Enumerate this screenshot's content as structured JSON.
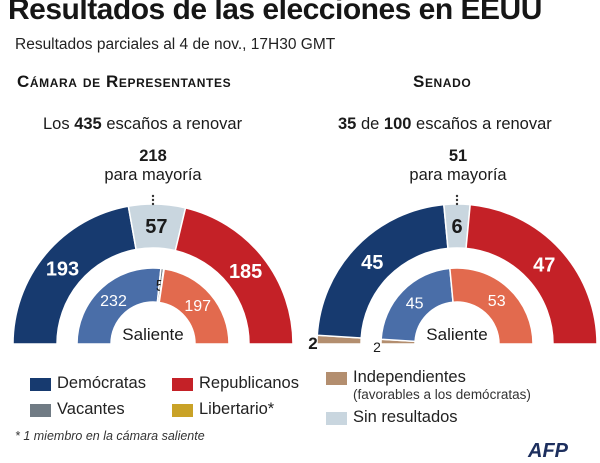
{
  "title": "Resultados de las elecciones en EEUU",
  "subtitle": "Resultados parciales al 4 de nov., 17H30 GMT",
  "colors": {
    "democrats": "#173a6f",
    "republicans": "#c42127",
    "vacancies": "#707b84",
    "libertarian": "#c9a227",
    "independents": "#b38e6f",
    "no_results": "#c9d6df",
    "outgoing_dem": "#4a6ea8",
    "outgoing_rep": "#e26a4e"
  },
  "house": {
    "title": "Cámara de Representantes",
    "seats_prefix": "Los",
    "seats_total": "435",
    "seats_suffix": "escaños a renovar",
    "majority_number": "218",
    "majority_label": "para mayoría",
    "outgoing_label": "Saliente"
  },
  "senate": {
    "title": "Senado",
    "seats_up": "35",
    "seats_de": "de",
    "seats_total": "100",
    "seats_suffix": "escaños a renovar",
    "majority_number": "51",
    "majority_label": "para mayoría",
    "outgoing_label": "Saliente"
  },
  "chart_data": [
    {
      "type": "semicircle",
      "title": "Cámara de Representantes — resultados",
      "total": 435,
      "segments": [
        {
          "name": "Demócratas",
          "value": 193,
          "color_key": "democrats"
        },
        {
          "name": "Sin resultados",
          "value": 57,
          "color_key": "no_results"
        },
        {
          "name": "Republicanos",
          "value": 185,
          "color_key": "republicans"
        }
      ]
    },
    {
      "type": "semicircle",
      "title": "Cámara de Representantes — saliente",
      "total": 435,
      "segments": [
        {
          "name": "Demócratas",
          "value": 232,
          "color_key": "outgoing_dem"
        },
        {
          "name": "Vacantes",
          "value": 5,
          "color_key": "vacancies"
        },
        {
          "name": "Libertario",
          "value": 1,
          "color_key": "libertarian",
          "hide_label": true
        },
        {
          "name": "Republicanos",
          "value": 197,
          "color_key": "outgoing_rep"
        }
      ]
    },
    {
      "type": "semicircle",
      "title": "Senado — resultados",
      "total": 100,
      "segments": [
        {
          "name": "Independientes",
          "value": 2,
          "color_key": "independents"
        },
        {
          "name": "Demócratas",
          "value": 45,
          "color_key": "democrats"
        },
        {
          "name": "Sin resultados",
          "value": 6,
          "color_key": "no_results"
        },
        {
          "name": "Republicanos",
          "value": 47,
          "color_key": "republicans"
        }
      ]
    },
    {
      "type": "semicircle",
      "title": "Senado — saliente",
      "total": 100,
      "segments": [
        {
          "name": "Independientes",
          "value": 2,
          "color_key": "independents"
        },
        {
          "name": "Demócratas",
          "value": 45,
          "color_key": "outgoing_dem"
        },
        {
          "name": "Republicanos",
          "value": 53,
          "color_key": "outgoing_rep"
        }
      ]
    }
  ],
  "legend": [
    {
      "label": "Demócratas",
      "color_key": "democrats"
    },
    {
      "label": "Republicanos",
      "color_key": "republicans"
    },
    {
      "label": "Independientes",
      "sub": "(favorables a los demócratas)",
      "color_key": "independents"
    },
    {
      "label": "Vacantes",
      "color_key": "vacancies"
    },
    {
      "label": "Libertario*",
      "color_key": "libertarian"
    },
    {
      "label": "Sin resultados",
      "color_key": "no_results"
    }
  ],
  "footnote": "* 1 miembro en la cámara saliente",
  "source_logo": "AFP"
}
